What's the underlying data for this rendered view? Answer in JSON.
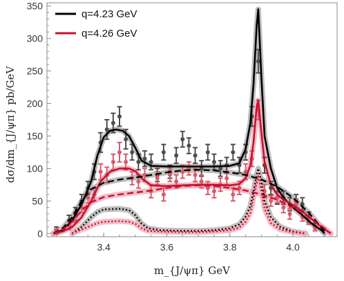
{
  "chart_data": {
    "type": "line",
    "title": "",
    "xlabel": "m_{J/ψπ} GeV",
    "ylabel": "dσ/dm_{J/ψπ} pb/GeV",
    "xlim": [
      3.22,
      4.14
    ],
    "ylim": [
      -5,
      355
    ],
    "x_ticks": [
      3.4,
      3.6,
      3.8,
      4.0
    ],
    "x_tick_labels": [
      "3.4",
      "3.6",
      "3.8",
      "4.0"
    ],
    "y_ticks": [
      0,
      50,
      100,
      150,
      200,
      250,
      300,
      350
    ],
    "y_tick_labels": [
      "0",
      "50",
      "100",
      "150",
      "200",
      "250",
      "300",
      "350"
    ],
    "legend_position": "top-left",
    "grid": false,
    "colors": {
      "black_series": "#000000",
      "red_series": "#c8102e",
      "black_points": "#4d4d4d",
      "red_points": "#d9596b",
      "black_band": "#b3b3b3",
      "red_band": "#f2b3bd"
    },
    "series": [
      {
        "name": "q=4.23 GeV",
        "role": "total",
        "style": "solid",
        "color": "#000000",
        "points": [
          [
            3.24,
            0
          ],
          [
            3.27,
            5
          ],
          [
            3.3,
            20
          ],
          [
            3.33,
            45
          ],
          [
            3.36,
            80
          ],
          [
            3.38,
            120
          ],
          [
            3.4,
            148
          ],
          [
            3.42,
            158
          ],
          [
            3.44,
            160
          ],
          [
            3.46,
            158
          ],
          [
            3.48,
            150
          ],
          [
            3.5,
            132
          ],
          [
            3.52,
            112
          ],
          [
            3.55,
            104
          ],
          [
            3.6,
            103
          ],
          [
            3.65,
            103
          ],
          [
            3.7,
            103
          ],
          [
            3.75,
            103
          ],
          [
            3.8,
            104
          ],
          [
            3.83,
            108
          ],
          [
            3.85,
            130
          ],
          [
            3.865,
            170
          ],
          [
            3.875,
            230
          ],
          [
            3.885,
            320
          ],
          [
            3.89,
            345
          ],
          [
            3.9,
            240
          ],
          [
            3.91,
            150
          ],
          [
            3.93,
            100
          ],
          [
            3.95,
            70
          ],
          [
            3.97,
            55
          ],
          [
            4.0,
            40
          ],
          [
            4.03,
            28
          ],
          [
            4.06,
            15
          ],
          [
            4.09,
            5
          ],
          [
            4.1,
            0
          ]
        ]
      },
      {
        "name": "q=4.26 GeV",
        "role": "total",
        "style": "solid",
        "color": "#c8102e",
        "points": [
          [
            3.24,
            0
          ],
          [
            3.27,
            3
          ],
          [
            3.3,
            10
          ],
          [
            3.33,
            25
          ],
          [
            3.36,
            50
          ],
          [
            3.39,
            80
          ],
          [
            3.42,
            95
          ],
          [
            3.45,
            100
          ],
          [
            3.48,
            100
          ],
          [
            3.5,
            96
          ],
          [
            3.52,
            85
          ],
          [
            3.55,
            74
          ],
          [
            3.6,
            73
          ],
          [
            3.65,
            74
          ],
          [
            3.7,
            75
          ],
          [
            3.75,
            75
          ],
          [
            3.8,
            74
          ],
          [
            3.83,
            76
          ],
          [
            3.85,
            85
          ],
          [
            3.865,
            105
          ],
          [
            3.875,
            140
          ],
          [
            3.885,
            195
          ],
          [
            3.89,
            205
          ],
          [
            3.9,
            155
          ],
          [
            3.91,
            110
          ],
          [
            3.93,
            75
          ],
          [
            3.95,
            60
          ],
          [
            3.97,
            52
          ],
          [
            4.0,
            44
          ],
          [
            4.03,
            34
          ],
          [
            4.06,
            22
          ],
          [
            4.09,
            10
          ],
          [
            4.12,
            0
          ]
        ]
      },
      {
        "name": "",
        "role": "background",
        "style": "dashed",
        "color": "#000000",
        "points": [
          [
            3.24,
            0
          ],
          [
            3.27,
            8
          ],
          [
            3.3,
            25
          ],
          [
            3.33,
            50
          ],
          [
            3.36,
            68
          ],
          [
            3.4,
            78
          ],
          [
            3.45,
            83
          ],
          [
            3.5,
            86
          ],
          [
            3.55,
            90
          ],
          [
            3.6,
            94
          ],
          [
            3.65,
            97
          ],
          [
            3.7,
            98
          ],
          [
            3.75,
            97
          ],
          [
            3.8,
            94
          ],
          [
            3.85,
            90
          ],
          [
            3.9,
            83
          ],
          [
            3.95,
            72
          ],
          [
            4.0,
            55
          ],
          [
            4.05,
            32
          ],
          [
            4.08,
            15
          ],
          [
            4.1,
            3
          ]
        ]
      },
      {
        "name": "",
        "role": "background",
        "style": "dashed",
        "color": "#c8102e",
        "points": [
          [
            3.24,
            0
          ],
          [
            3.27,
            6
          ],
          [
            3.3,
            18
          ],
          [
            3.33,
            35
          ],
          [
            3.36,
            48
          ],
          [
            3.4,
            56
          ],
          [
            3.45,
            60
          ],
          [
            3.5,
            63
          ],
          [
            3.55,
            66
          ],
          [
            3.6,
            70
          ],
          [
            3.65,
            73
          ],
          [
            3.7,
            74
          ],
          [
            3.75,
            73
          ],
          [
            3.8,
            70
          ],
          [
            3.85,
            66
          ],
          [
            3.9,
            60
          ],
          [
            3.95,
            52
          ],
          [
            4.0,
            40
          ],
          [
            4.05,
            25
          ],
          [
            4.1,
            8
          ],
          [
            4.12,
            0
          ]
        ]
      },
      {
        "name": "",
        "role": "peaks",
        "style": "dotted",
        "color": "#000000",
        "points": [
          [
            3.3,
            0
          ],
          [
            3.33,
            10
          ],
          [
            3.36,
            25
          ],
          [
            3.38,
            33
          ],
          [
            3.4,
            37
          ],
          [
            3.45,
            38
          ],
          [
            3.48,
            36
          ],
          [
            3.5,
            28
          ],
          [
            3.52,
            15
          ],
          [
            3.54,
            8
          ],
          [
            3.58,
            5
          ],
          [
            3.65,
            4
          ],
          [
            3.7,
            4
          ],
          [
            3.75,
            5
          ],
          [
            3.8,
            8
          ],
          [
            3.83,
            14
          ],
          [
            3.85,
            26
          ],
          [
            3.865,
            42
          ],
          [
            3.875,
            65
          ],
          [
            3.885,
            90
          ],
          [
            3.89,
            100
          ],
          [
            3.9,
            80
          ],
          [
            3.91,
            50
          ],
          [
            3.93,
            25
          ],
          [
            3.96,
            10
          ],
          [
            4.0,
            3
          ],
          [
            4.04,
            0
          ]
        ]
      },
      {
        "name": "",
        "role": "peaks",
        "style": "dotted",
        "color": "#c8102e",
        "points": [
          [
            3.3,
            0
          ],
          [
            3.33,
            6
          ],
          [
            3.36,
            12
          ],
          [
            3.38,
            16
          ],
          [
            3.4,
            18
          ],
          [
            3.45,
            19
          ],
          [
            3.48,
            18
          ],
          [
            3.5,
            15
          ],
          [
            3.52,
            8
          ],
          [
            3.54,
            4
          ],
          [
            3.58,
            3
          ],
          [
            3.65,
            2
          ],
          [
            3.7,
            2
          ],
          [
            3.75,
            3
          ],
          [
            3.8,
            5
          ],
          [
            3.83,
            9
          ],
          [
            3.85,
            18
          ],
          [
            3.865,
            32
          ],
          [
            3.875,
            55
          ],
          [
            3.885,
            78
          ],
          [
            3.89,
            88
          ],
          [
            3.9,
            65
          ],
          [
            3.91,
            38
          ],
          [
            3.93,
            16
          ],
          [
            3.96,
            6
          ],
          [
            4.0,
            2
          ],
          [
            4.04,
            0
          ]
        ]
      }
    ],
    "data_points": [
      {
        "color": "#4d4d4d",
        "points": [
          [
            3.25,
            5,
            5
          ],
          [
            3.29,
            20,
            8
          ],
          [
            3.31,
            30,
            10
          ],
          [
            3.33,
            50,
            10
          ],
          [
            3.35,
            70,
            10
          ],
          [
            3.37,
            95,
            12
          ],
          [
            3.39,
            140,
            15
          ],
          [
            3.41,
            160,
            15
          ],
          [
            3.43,
            170,
            15
          ],
          [
            3.45,
            180,
            15
          ],
          [
            3.47,
            145,
            15
          ],
          [
            3.49,
            125,
            12
          ],
          [
            3.51,
            110,
            12
          ],
          [
            3.53,
            115,
            12
          ],
          [
            3.55,
            110,
            12
          ],
          [
            3.57,
            90,
            10
          ],
          [
            3.59,
            125,
            12
          ],
          [
            3.61,
            95,
            10
          ],
          [
            3.63,
            120,
            12
          ],
          [
            3.65,
            145,
            12
          ],
          [
            3.67,
            135,
            12
          ],
          [
            3.69,
            120,
            12
          ],
          [
            3.71,
            100,
            12
          ],
          [
            3.73,
            125,
            12
          ],
          [
            3.75,
            110,
            12
          ],
          [
            3.77,
            100,
            12
          ],
          [
            3.79,
            105,
            12
          ],
          [
            3.81,
            125,
            12
          ],
          [
            3.83,
            105,
            12
          ],
          [
            3.85,
            125,
            12
          ],
          [
            3.87,
            180,
            15
          ],
          [
            3.89,
            265,
            18
          ],
          [
            3.91,
            105,
            12
          ],
          [
            3.93,
            70,
            10
          ],
          [
            3.95,
            55,
            10
          ],
          [
            3.97,
            55,
            10
          ],
          [
            3.99,
            45,
            10
          ],
          [
            4.01,
            50,
            10
          ],
          [
            4.03,
            45,
            10
          ],
          [
            4.05,
            25,
            8
          ],
          [
            4.07,
            10,
            6
          ]
        ]
      },
      {
        "color": "#d9596b",
        "points": [
          [
            3.25,
            3,
            4
          ],
          [
            3.29,
            12,
            6
          ],
          [
            3.31,
            25,
            8
          ],
          [
            3.33,
            40,
            8
          ],
          [
            3.35,
            55,
            8
          ],
          [
            3.37,
            60,
            10
          ],
          [
            3.39,
            95,
            12
          ],
          [
            3.41,
            90,
            12
          ],
          [
            3.43,
            110,
            12
          ],
          [
            3.45,
            125,
            15
          ],
          [
            3.47,
            110,
            12
          ],
          [
            3.49,
            85,
            10
          ],
          [
            3.51,
            80,
            10
          ],
          [
            3.53,
            90,
            10
          ],
          [
            3.55,
            65,
            10
          ],
          [
            3.57,
            85,
            10
          ],
          [
            3.59,
            60,
            10
          ],
          [
            3.61,
            90,
            10
          ],
          [
            3.63,
            80,
            10
          ],
          [
            3.65,
            95,
            10
          ],
          [
            3.67,
            100,
            10
          ],
          [
            3.69,
            90,
            10
          ],
          [
            3.71,
            80,
            10
          ],
          [
            3.73,
            70,
            10
          ],
          [
            3.75,
            65,
            10
          ],
          [
            3.77,
            75,
            10
          ],
          [
            3.79,
            85,
            10
          ],
          [
            3.81,
            60,
            10
          ],
          [
            3.83,
            70,
            10
          ],
          [
            3.85,
            95,
            12
          ],
          [
            3.87,
            115,
            12
          ],
          [
            3.89,
            190,
            15
          ],
          [
            3.91,
            65,
            10
          ],
          [
            3.93,
            50,
            8
          ],
          [
            3.95,
            55,
            8
          ],
          [
            3.97,
            40,
            8
          ],
          [
            3.99,
            30,
            8
          ],
          [
            4.01,
            45,
            8
          ],
          [
            4.03,
            25,
            6
          ],
          [
            4.05,
            20,
            6
          ],
          [
            4.07,
            8,
            4
          ]
        ]
      }
    ]
  }
}
